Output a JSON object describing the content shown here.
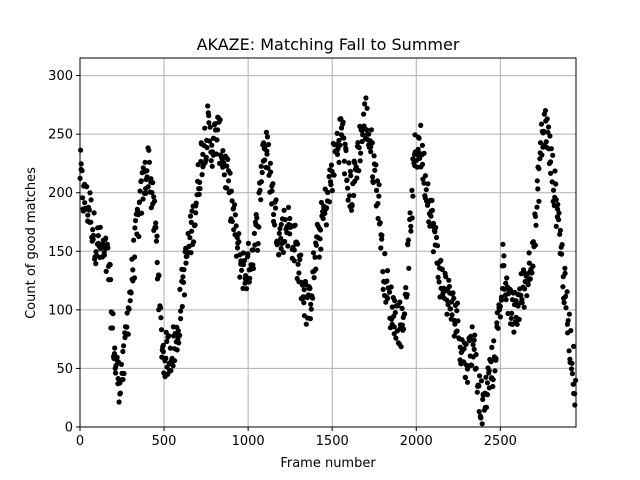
{
  "chart_data": {
    "type": "scatter",
    "title": "AKAZE: Matching Fall to Summer",
    "xlabel": "Frame number",
    "ylabel": "Count of good matches",
    "xlim": [
      0,
      2950
    ],
    "ylim": [
      0,
      315
    ],
    "xticks": [
      0,
      500,
      1000,
      1500,
      2000,
      2500
    ],
    "yticks": [
      0,
      50,
      100,
      150,
      200,
      250,
      300
    ],
    "grid": true,
    "marker_color": "#000000",
    "series": [
      {
        "trend": [
          [
            0,
            220
          ],
          [
            20,
            195
          ],
          [
            60,
            185
          ],
          [
            90,
            160
          ],
          [
            130,
            150
          ],
          [
            170,
            140
          ],
          [
            190,
            90
          ],
          [
            210,
            55
          ],
          [
            230,
            40
          ],
          [
            260,
            50
          ],
          [
            280,
            90
          ],
          [
            310,
            130
          ],
          [
            340,
            170
          ],
          [
            380,
            210
          ],
          [
            410,
            225
          ],
          [
            440,
            180
          ],
          [
            460,
            150
          ],
          [
            480,
            80
          ],
          [
            500,
            60
          ],
          [
            540,
            65
          ],
          [
            580,
            75
          ],
          [
            600,
            110
          ],
          [
            640,
            150
          ],
          [
            680,
            180
          ],
          [
            720,
            230
          ],
          [
            760,
            255
          ],
          [
            780,
            240
          ],
          [
            820,
            250
          ],
          [
            860,
            225
          ],
          [
            900,
            190
          ],
          [
            940,
            150
          ],
          [
            980,
            130
          ],
          [
            1020,
            145
          ],
          [
            1060,
            175
          ],
          [
            1090,
            240
          ],
          [
            1120,
            230
          ],
          [
            1150,
            190
          ],
          [
            1190,
            160
          ],
          [
            1230,
            175
          ],
          [
            1270,
            160
          ],
          [
            1300,
            140
          ],
          [
            1330,
            115
          ],
          [
            1360,
            100
          ],
          [
            1400,
            145
          ],
          [
            1440,
            175
          ],
          [
            1480,
            200
          ],
          [
            1520,
            235
          ],
          [
            1560,
            255
          ],
          [
            1590,
            210
          ],
          [
            1620,
            200
          ],
          [
            1660,
            240
          ],
          [
            1700,
            265
          ],
          [
            1740,
            230
          ],
          [
            1780,
            190
          ],
          [
            1800,
            140
          ],
          [
            1840,
            105
          ],
          [
            1880,
            95
          ],
          [
            1920,
            85
          ],
          [
            1960,
            160
          ],
          [
            1990,
            230
          ],
          [
            2020,
            245
          ],
          [
            2050,
            215
          ],
          [
            2080,
            190
          ],
          [
            2110,
            160
          ],
          [
            2140,
            130
          ],
          [
            2180,
            115
          ],
          [
            2210,
            100
          ],
          [
            2240,
            95
          ],
          [
            2270,
            65
          ],
          [
            2300,
            55
          ],
          [
            2340,
            75
          ],
          [
            2380,
            25
          ],
          [
            2400,
            15
          ],
          [
            2430,
            40
          ],
          [
            2460,
            55
          ],
          [
            2490,
            90
          ],
          [
            2520,
            145
          ],
          [
            2550,
            100
          ],
          [
            2580,
            95
          ],
          [
            2620,
            110
          ],
          [
            2670,
            135
          ],
          [
            2710,
            170
          ],
          [
            2740,
            240
          ],
          [
            2770,
            260
          ],
          [
            2810,
            215
          ],
          [
            2850,
            175
          ],
          [
            2880,
            120
          ],
          [
            2910,
            80
          ],
          [
            2950,
            30
          ]
        ]
      }
    ]
  }
}
